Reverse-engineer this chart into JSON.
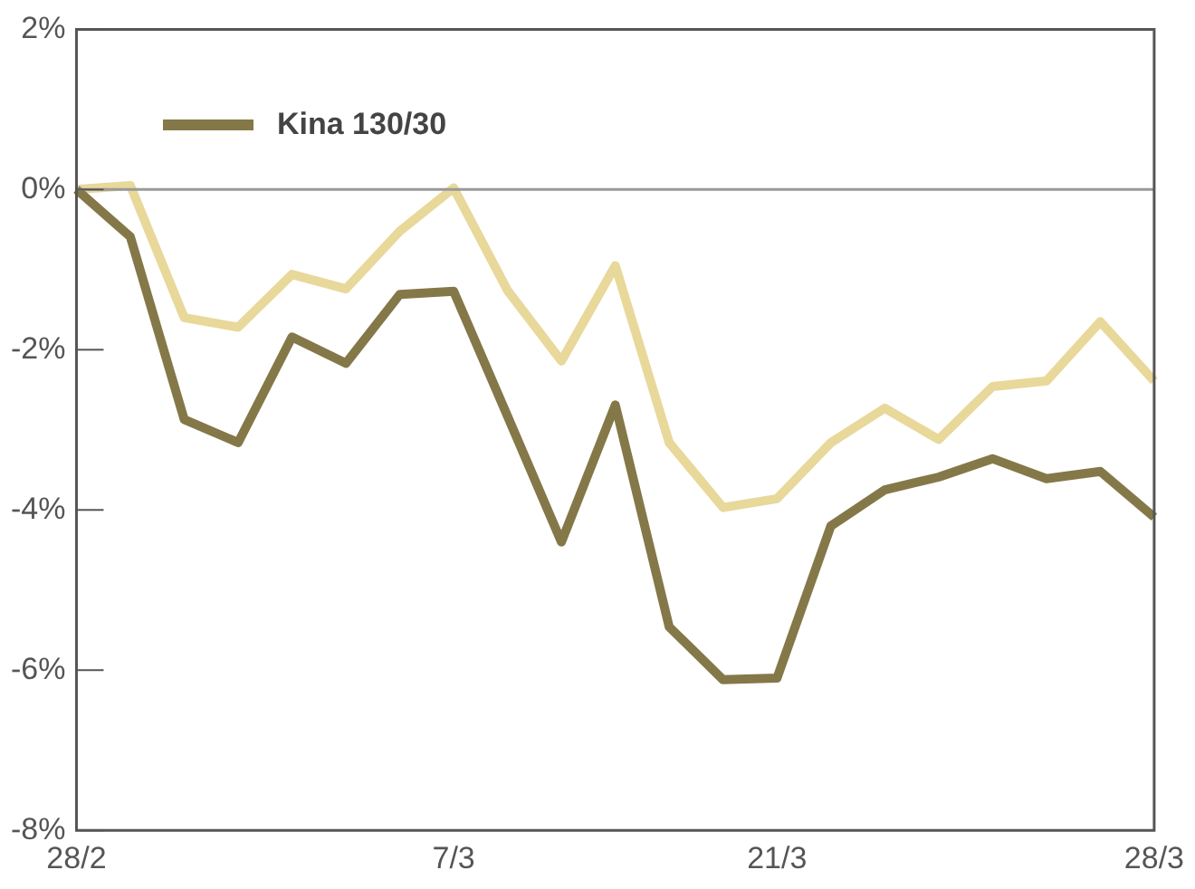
{
  "chart_data": {
    "type": "line",
    "categories": [
      "28/2",
      null,
      null,
      null,
      null,
      null,
      null,
      "7/3",
      null,
      null,
      null,
      null,
      null,
      "21/3",
      null,
      null,
      null,
      null,
      null,
      null,
      "28/3"
    ],
    "series": [
      {
        "name": "Kina 130/30",
        "color": "#857848",
        "values": [
          0,
          -0.59,
          -2.87,
          -3.16,
          -1.84,
          -2.17,
          -1.31,
          -1.27,
          -2.83,
          -4.4,
          -2.69,
          -5.46,
          -6.12,
          -6.1,
          -4.2,
          -3.75,
          -3.59,
          -3.36,
          -3.61,
          -3.52,
          -4.09
        ]
      },
      {
        "color": "#e8d89a",
        "values": [
          0,
          0.05,
          -1.6,
          -1.72,
          -1.06,
          -1.24,
          -0.52,
          0.02,
          -1.26,
          -2.14,
          -0.95,
          -3.16,
          -3.97,
          -3.86,
          -3.16,
          -2.73,
          -3.12,
          -2.46,
          -2.39,
          -1.65,
          -2.39
        ]
      }
    ],
    "ylim": [
      -8,
      2
    ],
    "yticks": [
      {
        "value": 2,
        "label": "2%"
      },
      {
        "value": 0,
        "label": "0%"
      },
      {
        "value": -2,
        "label": "-2%"
      },
      {
        "value": -4,
        "label": "-4%"
      },
      {
        "value": -6,
        "label": "-6%"
      },
      {
        "value": -8,
        "label": "-8%"
      }
    ],
    "ref_lines": [
      {
        "axis": "y",
        "value": 0,
        "color": "#999999"
      }
    ],
    "grid": false,
    "legend": "top left",
    "marker": "none",
    "line_style": "solid"
  }
}
